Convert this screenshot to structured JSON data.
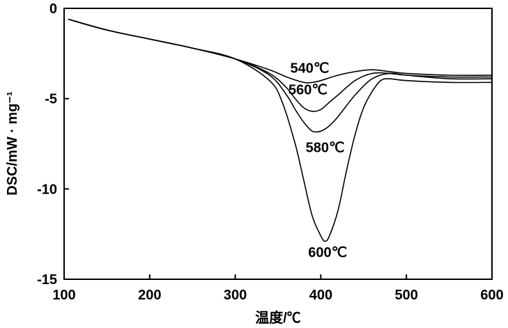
{
  "chart_data": {
    "type": "line",
    "title": "",
    "xlabel": "温度/℃",
    "ylabel": "DSC/mW · mg⁻¹",
    "xlim": [
      100,
      600
    ],
    "ylim": [
      -15,
      0
    ],
    "xticks": [
      "100",
      "200",
      "300",
      "400",
      "500",
      "600"
    ],
    "yticks": [
      "0",
      "-5",
      "-10",
      "-15"
    ],
    "grid": false,
    "legend": "none",
    "series": [
      {
        "name": "540℃",
        "x": [
          105,
          150,
          200,
          250,
          300,
          340,
          360,
          380,
          390,
          400,
          420,
          440,
          460,
          480,
          500,
          550,
          600
        ],
        "y": [
          -0.6,
          -1.2,
          -1.7,
          -2.2,
          -2.8,
          -3.4,
          -3.8,
          -4.1,
          -4.1,
          -4.0,
          -3.7,
          -3.5,
          -3.4,
          -3.5,
          -3.6,
          -3.7,
          -3.7
        ]
      },
      {
        "name": "560℃",
        "x": [
          105,
          150,
          200,
          250,
          300,
          340,
          360,
          370,
          380,
          390,
          400,
          410,
          420,
          440,
          460,
          480,
          500,
          550,
          600
        ],
        "y": [
          -0.6,
          -1.2,
          -1.7,
          -2.2,
          -2.8,
          -3.6,
          -4.4,
          -5.0,
          -5.5,
          -5.7,
          -5.6,
          -5.2,
          -4.8,
          -4.0,
          -3.6,
          -3.6,
          -3.7,
          -3.8,
          -3.8
        ]
      },
      {
        "name": "580℃",
        "x": [
          105,
          150,
          200,
          250,
          300,
          340,
          360,
          370,
          380,
          390,
          400,
          410,
          420,
          440,
          460,
          480,
          500,
          550,
          600
        ],
        "y": [
          -0.6,
          -1.2,
          -1.7,
          -2.2,
          -2.8,
          -3.7,
          -4.8,
          -5.6,
          -6.3,
          -6.8,
          -6.8,
          -6.5,
          -6.0,
          -4.8,
          -3.9,
          -3.6,
          -3.7,
          -3.9,
          -3.9
        ]
      },
      {
        "name": "600℃",
        "x": [
          105,
          150,
          200,
          250,
          300,
          340,
          355,
          370,
          380,
          390,
          400,
          405,
          410,
          420,
          430,
          440,
          450,
          460,
          470,
          480,
          500,
          550,
          600
        ],
        "y": [
          -0.6,
          -1.2,
          -1.7,
          -2.2,
          -2.8,
          -4.0,
          -5.2,
          -7.5,
          -9.5,
          -11.5,
          -12.6,
          -12.9,
          -12.6,
          -11.2,
          -9.0,
          -7.0,
          -5.5,
          -4.6,
          -4.0,
          -3.9,
          -4.0,
          -4.1,
          -4.1
        ]
      }
    ],
    "annotations": [
      {
        "text": "540℃",
        "x": 387,
        "y": -3.3
      },
      {
        "text": "560℃",
        "x": 385,
        "y": -4.5
      },
      {
        "text": "580℃",
        "x": 405,
        "y": -7.7
      },
      {
        "text": "600℃",
        "x": 408,
        "y": -13.5
      }
    ]
  }
}
